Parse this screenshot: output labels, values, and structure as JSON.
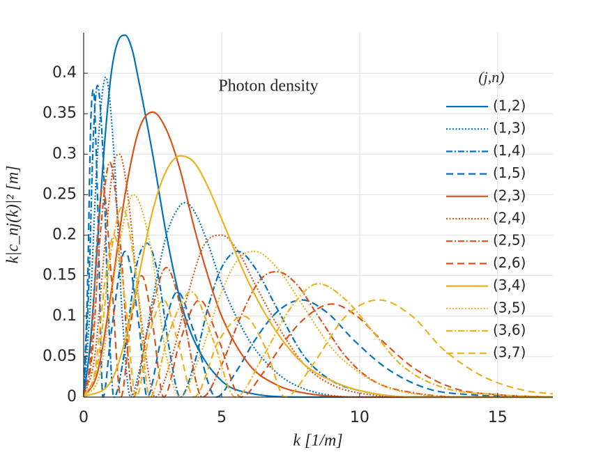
{
  "chart_data": {
    "type": "line",
    "annotation": "Photon density",
    "xlabel": "k [1/m]",
    "ylabel": "k|c_nj(k)|² [m]",
    "legend_title": "(j,n)",
    "legend_position": "right",
    "grid": true,
    "xlim": [
      0,
      17
    ],
    "xticks": [
      0,
      5,
      10,
      15
    ],
    "ylim": [
      0,
      0.45
    ],
    "yticks": [
      0,
      0.05,
      0.1,
      0.15,
      0.2,
      0.25,
      0.3,
      0.35,
      0.4
    ],
    "series": [
      {
        "name": "(1,2)",
        "color": "#0072bd",
        "linestyle": "solid",
        "x": [
          0,
          0.25,
          0.5,
          0.75,
          1,
          1.25,
          1.5,
          1.75,
          2,
          2.5,
          3,
          3.5,
          4,
          5,
          6,
          8,
          17
        ],
        "values": [
          0,
          0.07,
          0.19,
          0.31,
          0.4,
          0.44,
          0.447,
          0.43,
          0.39,
          0.3,
          0.2,
          0.12,
          0.07,
          0.02,
          0.005,
          0,
          0
        ]
      },
      {
        "name": "(1,3)",
        "color": "#0072bd",
        "linestyle": "dotted",
        "x": [
          0,
          0.25,
          0.5,
          0.8,
          1.1,
          1.4,
          1.7,
          2,
          2.5,
          3,
          3.5,
          3.7,
          4,
          4.5,
          5,
          6,
          7,
          8,
          10,
          17
        ],
        "values": [
          0,
          0.12,
          0.3,
          0.395,
          0.3,
          0.1,
          0,
          0.03,
          0.12,
          0.2,
          0.237,
          0.24,
          0.23,
          0.19,
          0.14,
          0.07,
          0.03,
          0.01,
          0,
          0
        ]
      },
      {
        "name": "(1,4)",
        "color": "#0072bd",
        "linestyle": "dashdot",
        "x": [
          0,
          0.2,
          0.35,
          0.5,
          0.7,
          0.9,
          1.1,
          1.5,
          1.9,
          2.3,
          2.7,
          3.1,
          3.5,
          4,
          4.5,
          5,
          5.6,
          6.2,
          7,
          8,
          9,
          10,
          12,
          17
        ],
        "values": [
          0,
          0.15,
          0.32,
          0.385,
          0.3,
          0.1,
          0,
          0.06,
          0.16,
          0.19,
          0.15,
          0.06,
          0,
          0.04,
          0.11,
          0.16,
          0.18,
          0.16,
          0.11,
          0.05,
          0.02,
          0.008,
          0,
          0
        ]
      },
      {
        "name": "(1,5)",
        "color": "#0072bd",
        "linestyle": "dashed",
        "x": [
          0,
          0.15,
          0.25,
          0.35,
          0.5,
          0.7,
          1,
          1.5,
          2,
          2.3,
          2.8,
          3.4,
          4,
          4.8,
          5.5,
          6.2,
          7,
          7.9,
          8.8,
          9.8,
          11,
          12.5,
          14,
          17
        ],
        "values": [
          0,
          0.15,
          0.33,
          0.38,
          0.25,
          0,
          0.08,
          0.18,
          0.09,
          0,
          0.07,
          0.13,
          0.08,
          0,
          0.03,
          0.07,
          0.105,
          0.12,
          0.105,
          0.07,
          0.035,
          0.01,
          0.003,
          0
        ]
      },
      {
        "name": "(2,3)",
        "color": "#d95319",
        "linestyle": "solid",
        "x": [
          0,
          0.5,
          1,
          1.5,
          2,
          2.5,
          3,
          3.5,
          4,
          4.5,
          5,
          6,
          7,
          8,
          10,
          17
        ],
        "values": [
          0,
          0.03,
          0.13,
          0.25,
          0.33,
          0.352,
          0.33,
          0.28,
          0.21,
          0.15,
          0.1,
          0.04,
          0.015,
          0.005,
          0,
          0
        ]
      },
      {
        "name": "(2,4)",
        "color": "#d95319",
        "linestyle": "dotted",
        "x": [
          0,
          0.4,
          0.8,
          1.1,
          1.3,
          1.6,
          2,
          2.6,
          3.2,
          3.8,
          4.4,
          5,
          5.6,
          6.2,
          7,
          8,
          9,
          10,
          12,
          17
        ],
        "values": [
          0,
          0.05,
          0.2,
          0.29,
          0.3,
          0.25,
          0.12,
          0,
          0.05,
          0.13,
          0.19,
          0.2,
          0.18,
          0.14,
          0.09,
          0.04,
          0.015,
          0.005,
          0,
          0
        ]
      },
      {
        "name": "(2,5)",
        "color": "#d95319",
        "linestyle": "dashdot",
        "x": [
          0,
          0.3,
          0.6,
          0.95,
          1.3,
          1.8,
          2.3,
          3,
          3.6,
          4.3,
          5,
          5.7,
          6.4,
          7,
          7.7,
          8.5,
          9.5,
          10.5,
          12,
          14,
          17
        ],
        "values": [
          0,
          0.05,
          0.2,
          0.29,
          0.2,
          0,
          0.08,
          0.16,
          0.1,
          0,
          0.04,
          0.1,
          0.145,
          0.155,
          0.14,
          0.1,
          0.05,
          0.02,
          0.005,
          0,
          0
        ]
      },
      {
        "name": "(2,6)",
        "color": "#d95319",
        "linestyle": "dashed",
        "x": [
          0,
          0.25,
          0.5,
          0.7,
          1,
          1.35,
          1.7,
          2.1,
          2.5,
          2.9,
          3.5,
          4.2,
          4.9,
          5.7,
          6.5,
          7.3,
          8.1,
          9,
          9.9,
          10.8,
          12,
          13.5,
          15,
          17
        ],
        "values": [
          0,
          0.05,
          0.2,
          0.26,
          0.15,
          0,
          0.09,
          0.15,
          0.09,
          0,
          0.07,
          0.12,
          0.07,
          0,
          0.03,
          0.07,
          0.1,
          0.115,
          0.1,
          0.07,
          0.035,
          0.01,
          0.003,
          0
        ]
      },
      {
        "name": "(3,4)",
        "color": "#edb120",
        "linestyle": "solid",
        "x": [
          0,
          1,
          1.5,
          2,
          2.5,
          3,
          3.5,
          4,
          4.5,
          5,
          6,
          7,
          8,
          9,
          10,
          12,
          17
        ],
        "values": [
          0,
          0.02,
          0.07,
          0.15,
          0.23,
          0.28,
          0.298,
          0.29,
          0.26,
          0.22,
          0.14,
          0.08,
          0.04,
          0.02,
          0.008,
          0,
          0
        ]
      },
      {
        "name": "(3,5)",
        "color": "#edb120",
        "linestyle": "dotted",
        "x": [
          0,
          0.6,
          1.2,
          1.8,
          2.4,
          3,
          3.5,
          4.2,
          5,
          5.6,
          6.2,
          7,
          8,
          9,
          10,
          11,
          12,
          14,
          17
        ],
        "values": [
          0,
          0.03,
          0.17,
          0.25,
          0.19,
          0.05,
          0,
          0.05,
          0.13,
          0.17,
          0.18,
          0.16,
          0.11,
          0.06,
          0.03,
          0.012,
          0.004,
          0,
          0
        ]
      },
      {
        "name": "(3,6)",
        "color": "#edb120",
        "linestyle": "dashdot",
        "x": [
          0,
          0.5,
          1,
          1.4,
          1.9,
          2.4,
          3.1,
          3.9,
          4.7,
          5.5,
          6.5,
          7.5,
          8.5,
          9.5,
          10.5,
          11.5,
          13,
          15,
          17
        ],
        "values": [
          0,
          0.04,
          0.18,
          0.235,
          0.15,
          0,
          0.08,
          0.13,
          0.07,
          0,
          0.05,
          0.11,
          0.14,
          0.12,
          0.08,
          0.04,
          0.012,
          0.003,
          0
        ]
      },
      {
        "name": "(3,7)",
        "color": "#edb120",
        "linestyle": "dashed",
        "x": [
          0,
          0.4,
          0.8,
          1.1,
          1.5,
          1.9,
          2.4,
          2.9,
          3.4,
          4,
          4.9,
          5.8,
          6.6,
          7.3,
          8.3,
          9.5,
          10.7,
          11.9,
          13,
          14.5,
          16,
          17
        ],
        "values": [
          0,
          0.03,
          0.15,
          0.2,
          0.12,
          0,
          0.08,
          0.12,
          0.07,
          0,
          0.07,
          0.1,
          0.06,
          0,
          0.04,
          0.1,
          0.12,
          0.1,
          0.06,
          0.025,
          0.008,
          0.004
        ]
      }
    ]
  }
}
